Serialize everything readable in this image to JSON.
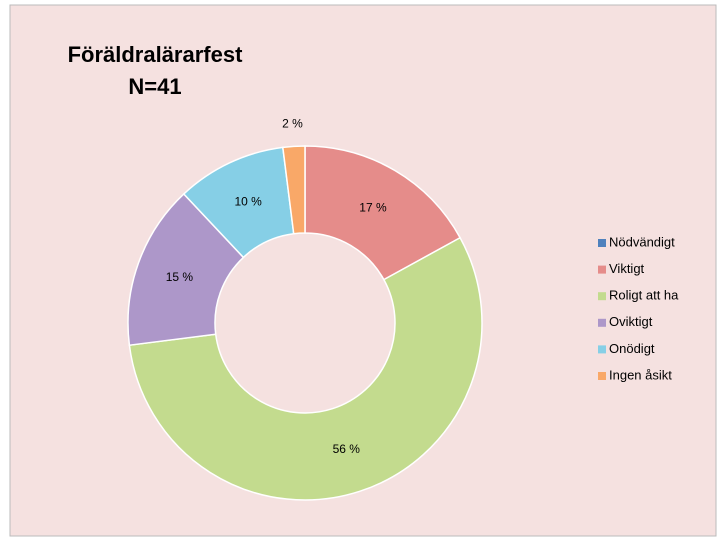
{
  "chart_data": {
    "type": "donut",
    "title": "Föräldralärarfest",
    "subtitle": "N=41",
    "categories": [
      "Nödvändigt",
      "Viktigt",
      "Roligt att ha",
      "Oviktigt",
      "Onödigt",
      "Ingen åsikt"
    ],
    "values": [
      0,
      17,
      56,
      15,
      10,
      2
    ],
    "value_labels": [
      null,
      "17 %",
      "56 %",
      "15 %",
      "10 %",
      "2 %"
    ],
    "colors": [
      "#4f81bd",
      "#e58c8a",
      "#c3db8e",
      "#ad97c9",
      "#86cfe6",
      "#f9a868"
    ],
    "legend": "right"
  }
}
